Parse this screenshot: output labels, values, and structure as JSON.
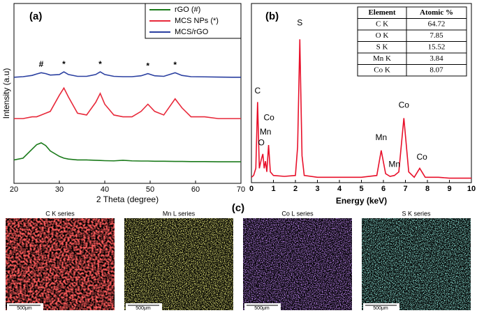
{
  "chart_data": [
    {
      "type": "line",
      "panel": "(a)",
      "xlabel": "2 Theta (degree)",
      "ylabel": "Intensity (a.u)",
      "x": [
        20,
        22,
        24,
        25,
        26,
        27,
        28,
        30,
        31,
        32,
        34,
        36,
        38,
        39,
        40,
        42,
        44,
        46,
        48,
        49.5,
        51,
        53,
        55.5,
        57,
        59,
        62,
        65,
        68,
        70
      ],
      "series": [
        {
          "name": "rGO (#)",
          "color": "#1a7a1a",
          "values": [
            13,
            14,
            19,
            21.5,
            22.5,
            21,
            18,
            15,
            14,
            13.5,
            13,
            13,
            12.8,
            12.7,
            12.6,
            12.5,
            12.8,
            12.5,
            12.4,
            12.4,
            12.3,
            12.3,
            12.2,
            12.2,
            12.1,
            12.1,
            12,
            12,
            12
          ]
        },
        {
          "name": "MCS NPs (*)",
          "color": "#e8293a",
          "values": [
            36,
            36,
            37,
            37,
            38,
            39,
            40,
            49,
            53,
            48,
            39,
            38,
            45,
            50,
            44,
            38,
            37,
            37,
            40,
            44,
            40,
            38,
            47,
            42,
            37,
            37,
            36,
            36,
            36
          ]
        },
        {
          "name": "MCS/rGO",
          "color": "#2a3fa0",
          "values": [
            59,
            59.3,
            60,
            60.8,
            61.5,
            61,
            60.2,
            60.5,
            62,
            60.5,
            59.5,
            59.5,
            60.5,
            62,
            60.5,
            59.5,
            59.3,
            59.3,
            59.8,
            61,
            59.8,
            59.5,
            61.5,
            60,
            59.3,
            59.2,
            59.1,
            59,
            59
          ]
        }
      ],
      "annotations": [
        {
          "text": "#",
          "x": 26,
          "y": 66,
          "color": "#1a7a1a"
        },
        {
          "text": "*",
          "x": 31,
          "y": 66,
          "color": "#e8293a"
        },
        {
          "text": "*",
          "x": 39,
          "y": 66,
          "color": "#e8293a"
        },
        {
          "text": "*",
          "x": 49.5,
          "y": 65,
          "color": "#e8293a"
        },
        {
          "text": "*",
          "x": 55.5,
          "y": 65.5,
          "color": "#e8293a"
        }
      ],
      "xlim": [
        20,
        70
      ],
      "xticks": [
        20,
        30,
        40,
        50,
        60,
        70
      ],
      "ylim": [
        0,
        100
      ],
      "legend": "upper right"
    },
    {
      "type": "line",
      "panel": "(b)",
      "xlabel": "Energy (keV)",
      "x": [
        0,
        0.1,
        0.2,
        0.28,
        0.36,
        0.45,
        0.52,
        0.58,
        0.64,
        0.7,
        0.78,
        0.86,
        1,
        1.5,
        2,
        2.1,
        2.2,
        2.3,
        2.4,
        3,
        4,
        5,
        5.7,
        5.9,
        6.1,
        6.3,
        6.5,
        6.7,
        6.93,
        7.15,
        7.4,
        7.65,
        7.9,
        8.5,
        9,
        10
      ],
      "series": [
        {
          "name": "EDS",
          "color": "#e8102a",
          "values": [
            3,
            4,
            8,
            45,
            8,
            13,
            16,
            8,
            12,
            6,
            21,
            6,
            4,
            3.5,
            4,
            20,
            80,
            15,
            4,
            3,
            3,
            3,
            4,
            18,
            5,
            3.5,
            4,
            6,
            36,
            6,
            3,
            8,
            3,
            3,
            2.5,
            2.5
          ]
        }
      ],
      "annotations": [
        {
          "text": "C",
          "x": 0.28,
          "y": 51
        },
        {
          "text": "O",
          "x": 0.45,
          "y": 22
        },
        {
          "text": "Mn",
          "x": 0.64,
          "y": 28
        },
        {
          "text": "Co",
          "x": 0.8,
          "y": 36
        },
        {
          "text": "S",
          "x": 2.2,
          "y": 89
        },
        {
          "text": "Mn",
          "x": 5.9,
          "y": 25
        },
        {
          "text": "Mn",
          "x": 6.5,
          "y": 10
        },
        {
          "text": "Co",
          "x": 6.93,
          "y": 43
        },
        {
          "text": "Co",
          "x": 7.75,
          "y": 14
        }
      ],
      "xlim": [
        0,
        10
      ],
      "xticks": [
        0,
        1,
        2,
        3,
        4,
        5,
        6,
        7,
        8,
        9,
        10
      ],
      "ylim": [
        0,
        100
      ]
    }
  ],
  "table": {
    "header": [
      "Element",
      "Atomic %"
    ],
    "rows": [
      [
        "C K",
        64.72
      ],
      [
        "O K",
        7.85
      ],
      [
        "S K",
        15.52
      ],
      [
        "Mn K",
        3.84
      ],
      [
        "Co K",
        8.07
      ]
    ]
  },
  "mapping": {
    "panel": "(c)",
    "maps": [
      {
        "title": "C K series",
        "scale_bar": "500μm"
      },
      {
        "title": "Mn L series",
        "scale_bar": "500μm"
      },
      {
        "title": "Co L series",
        "scale_bar": "500μm"
      },
      {
        "title": "S K series",
        "scale_bar": "500μm"
      }
    ]
  }
}
